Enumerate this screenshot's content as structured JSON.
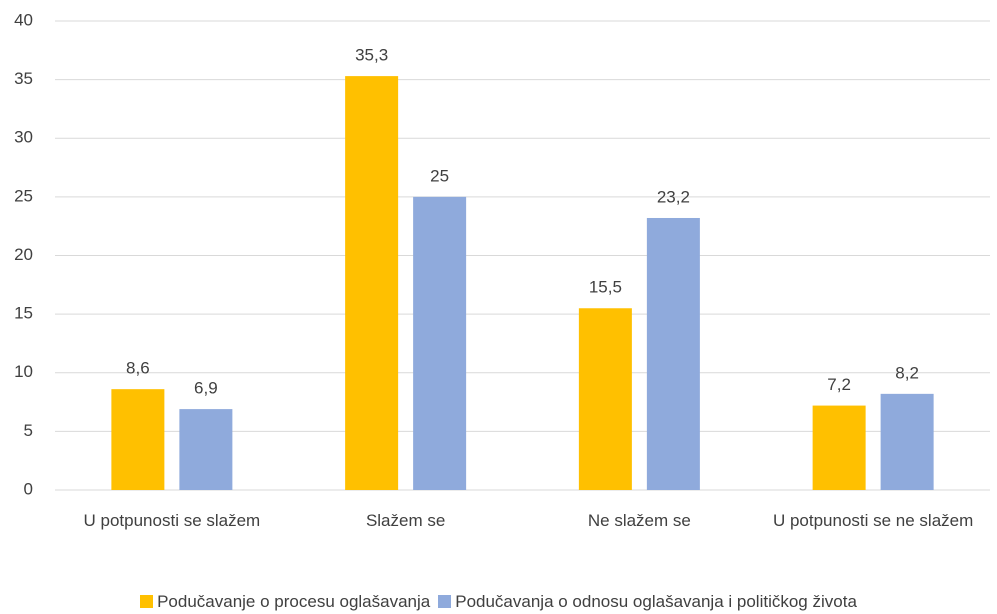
{
  "chart_data": {
    "type": "bar",
    "categories": [
      "U potpunosti se slažem",
      "Slažem se",
      "Ne slažem se",
      "U potpunosti se ne slažem"
    ],
    "series": [
      {
        "name": "Podučavanje o procesu oglašavanja",
        "color": "#ffc000",
        "values": [
          8.6,
          35.3,
          15.5,
          7.2
        ],
        "value_labels": [
          "8,6",
          "35,3",
          "15,5",
          "7,2"
        ]
      },
      {
        "name": "Podučavanja o odnosu oglašavanja i političkog života",
        "color": "#8faadc",
        "values": [
          6.9,
          25,
          23.2,
          8.2
        ],
        "value_labels": [
          "6,9",
          "25",
          "23,2",
          "8,2"
        ]
      }
    ],
    "ylim": [
      0,
      40
    ],
    "yticks": [
      0,
      5,
      10,
      15,
      20,
      25,
      30,
      35,
      40
    ],
    "grid": true,
    "legend": "bottom"
  }
}
